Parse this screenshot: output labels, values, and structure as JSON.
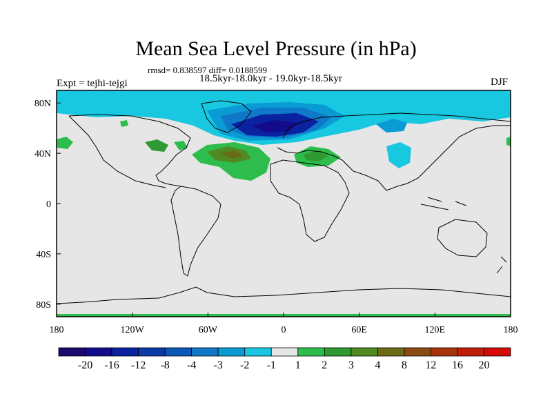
{
  "chart_data": {
    "type": "heatmap",
    "title": "Mean Sea Level Pressure (in hPa)",
    "stats": "rmsd= 0.838597 diff= 0.0188599",
    "period": "18.5kyr-18.0kyr - 19.0kyr-18.5kyr",
    "experiment": "Expt = tejhi-tejgi",
    "season": "DJF",
    "x_range": [
      -180,
      180
    ],
    "y_range": [
      -90,
      90
    ],
    "x_ticks": [
      {
        "value": -180,
        "label": "180"
      },
      {
        "value": -120,
        "label": "120W"
      },
      {
        "value": -60,
        "label": "60W"
      },
      {
        "value": 0,
        "label": "0"
      },
      {
        "value": 60,
        "label": "60E"
      },
      {
        "value": 120,
        "label": "120E"
      },
      {
        "value": 180,
        "label": "180"
      }
    ],
    "y_ticks": [
      {
        "value": 80,
        "label": "80N"
      },
      {
        "value": 40,
        "label": "40N"
      },
      {
        "value": 0,
        "label": "0"
      },
      {
        "value": -40,
        "label": "40S"
      },
      {
        "value": -80,
        "label": "80S"
      }
    ],
    "colorbar": {
      "levels": [
        "-20",
        "-16",
        "-12",
        "-8",
        "-4",
        "-3",
        "-2",
        "-1",
        "1",
        "2",
        "3",
        "4",
        "8",
        "12",
        "16",
        "20"
      ],
      "colors": [
        "#1a0a6b",
        "#130c8a",
        "#0a21a0",
        "#0b3aa8",
        "#0a57b8",
        "#0f78c8",
        "#0a9ad4",
        "#18c8e0",
        "#e6e6e6",
        "#2ebd4c",
        "#2f9a32",
        "#4f8a22",
        "#6a6a18",
        "#8a4a10",
        "#a8340c",
        "#c01e08",
        "#d40a0a"
      ]
    },
    "anomaly_regions": [
      {
        "name": "arctic-negative-band",
        "level": "-2 to -1",
        "lon": [
          -180,
          180
        ],
        "lat": [
          60,
          90
        ]
      },
      {
        "name": "north-atlantic-low",
        "level": "-16 to -4",
        "lon": [
          -45,
          40
        ],
        "lat": [
          50,
          78
        ]
      },
      {
        "name": "subtropical-atlantic-high",
        "level": "2 to 8",
        "lon": [
          -75,
          -5
        ],
        "lat": [
          25,
          45
        ]
      },
      {
        "name": "mediterranean-high",
        "level": "2 to 3",
        "lon": [
          0,
          45
        ],
        "lat": [
          35,
          45
        ]
      }
    ]
  }
}
